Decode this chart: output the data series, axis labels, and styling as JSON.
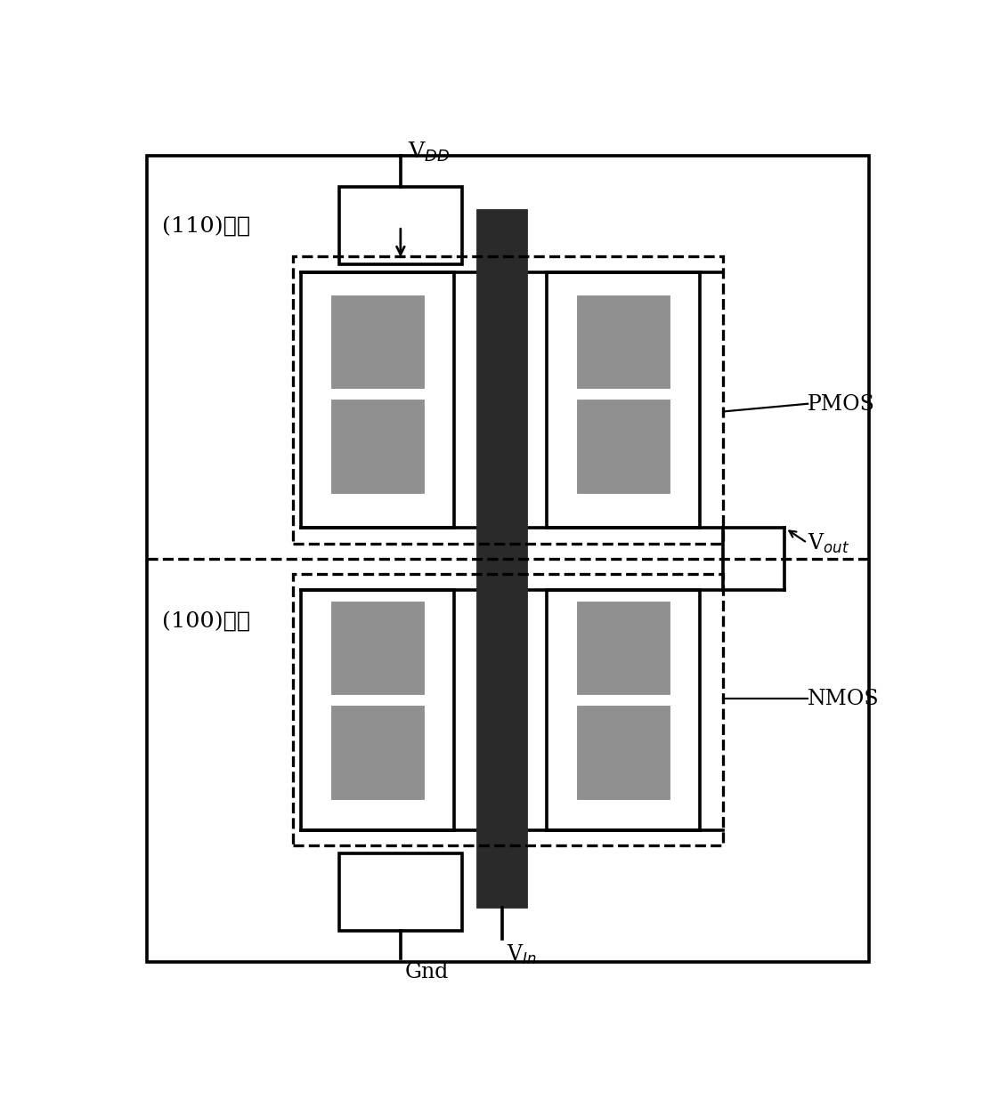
{
  "fig_width": 8.5,
  "fig_height": 9.5,
  "bg_color": "#ffffff",
  "label_110": "(110)晶面",
  "label_100": "(100)晶面",
  "label_VDD": "V$_{DD}$",
  "label_Gnd": "Gnd",
  "label_Vin": "V$_{In}$",
  "label_Vout": "V$_{out}$",
  "label_PMOS": "PMOS",
  "label_NMOS": "NMOS",
  "gate_color": "#2a2a2a",
  "square_fill": "#909090",
  "dashed_lw": 1.8,
  "solid_lw": 2.0,
  "font_size_label": 13,
  "font_size_crystal": 14,
  "font_size_vdd": 14
}
